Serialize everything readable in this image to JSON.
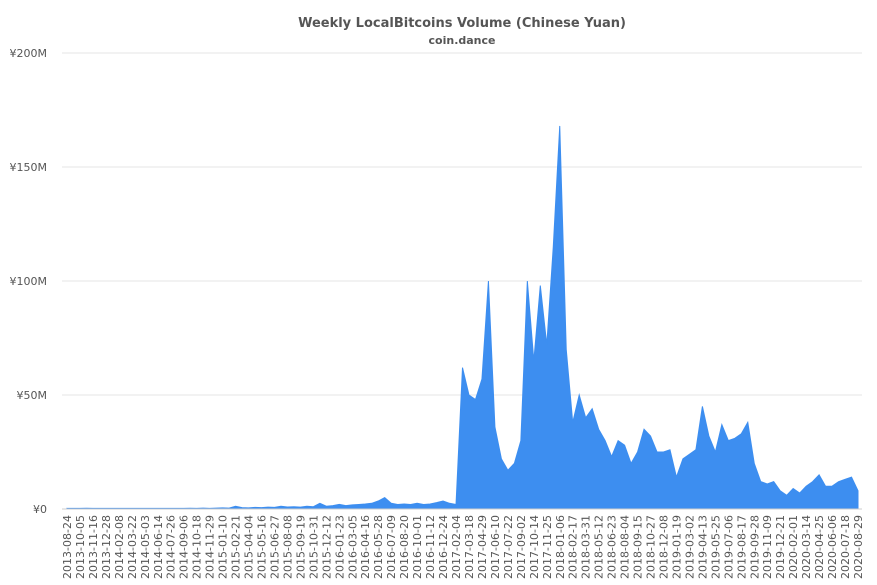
{
  "chart_data": {
    "type": "area",
    "title": "Weekly LocalBitcoins Volume (Chinese Yuan)",
    "subtitle": "coin.dance",
    "color": "#3d8ef0",
    "grid": true,
    "ylim": [
      0,
      200000000
    ],
    "yticks": [
      {
        "value": 0,
        "label": "¥0"
      },
      {
        "value": 50000000,
        "label": "¥50M"
      },
      {
        "value": 100000000,
        "label": "¥100M"
      },
      {
        "value": 150000000,
        "label": "¥150M"
      },
      {
        "value": 200000000,
        "label": "¥200M"
      }
    ],
    "categories": [
      "2013-08-24",
      null,
      "2013-10-05",
      null,
      "2013-11-16",
      null,
      "2013-12-28",
      null,
      "2014-02-08",
      null,
      "2014-03-22",
      null,
      "2014-05-03",
      null,
      "2014-06-14",
      null,
      "2014-07-26",
      null,
      "2014-09-06",
      null,
      "2014-10-18",
      null,
      "2014-11-29",
      null,
      "2015-01-10",
      null,
      "2015-02-21",
      null,
      "2015-04-04",
      null,
      "2015-05-16",
      null,
      "2015-06-27",
      null,
      "2015-08-08",
      null,
      "2015-09-19",
      null,
      "2015-10-31",
      null,
      "2015-12-12",
      null,
      "2016-01-23",
      null,
      "2016-03-05",
      null,
      "2016-04-16",
      null,
      "2016-05-28",
      null,
      "2016-07-09",
      null,
      "2016-08-20",
      null,
      "2016-10-01",
      null,
      "2016-11-12",
      null,
      "2016-12-24",
      null,
      "2017-02-04",
      null,
      "2017-03-18",
      null,
      "2017-04-29",
      null,
      "2017-06-10",
      null,
      "2017-07-22",
      null,
      "2017-09-02",
      null,
      "2017-10-14",
      null,
      "2017-11-25",
      null,
      "2018-01-06",
      null,
      "2018-02-17",
      null,
      "2018-03-31",
      null,
      "2018-05-12",
      null,
      "2018-06-23",
      null,
      "2018-08-04",
      null,
      "2018-09-15",
      null,
      "2018-10-27",
      null,
      "2018-12-08",
      null,
      "2019-01-19",
      null,
      "2019-03-02",
      null,
      "2019-04-13",
      null,
      "2019-05-25",
      null,
      "2019-07-06",
      null,
      "2019-08-17",
      null,
      "2019-09-28",
      null,
      "2019-11-09",
      null,
      "2019-12-21",
      null,
      "2020-02-01",
      null,
      "2020-03-14",
      null,
      "2020-04-25",
      null,
      "2020-06-06",
      null,
      "2020-07-18",
      null,
      "2020-08-29"
    ],
    "values": [
      300000,
      250000,
      300000,
      350000,
      300000,
      250000,
      300000,
      300000,
      250000,
      300000,
      300000,
      250000,
      300000,
      250000,
      300000,
      300000,
      250000,
      300000,
      300000,
      350000,
      300000,
      400000,
      300000,
      400000,
      500000,
      400000,
      1200000,
      600000,
      500000,
      700000,
      600000,
      800000,
      700000,
      1200000,
      900000,
      1000000,
      800000,
      1200000,
      1000000,
      2500000,
      1200000,
      1500000,
      2000000,
      1500000,
      1800000,
      2000000,
      2200000,
      2500000,
      3500000,
      5000000,
      2500000,
      2000000,
      2200000,
      2000000,
      2500000,
      2000000,
      2200000,
      2800000,
      3500000,
      2500000,
      2000000,
      62000000,
      50000000,
      48000000,
      57000000,
      100000000,
      36000000,
      22000000,
      17000000,
      20000000,
      30000000,
      100000000,
      65000000,
      98000000,
      72000000,
      115000000,
      168000000,
      70000000,
      38000000,
      50000000,
      40000000,
      44000000,
      35000000,
      30000000,
      23000000,
      30000000,
      28000000,
      20000000,
      25000000,
      35000000,
      32000000,
      25000000,
      25000000,
      26000000,
      14000000,
      22000000,
      24000000,
      26000000,
      45000000,
      32000000,
      25000000,
      37000000,
      30000000,
      31000000,
      33000000,
      38000000,
      20000000,
      12000000,
      11000000,
      12000000,
      8000000,
      6000000,
      9000000,
      7000000,
      10000000,
      12000000,
      15000000,
      10000000,
      10000000,
      12000000,
      13000000,
      14000000,
      8000000
    ]
  }
}
